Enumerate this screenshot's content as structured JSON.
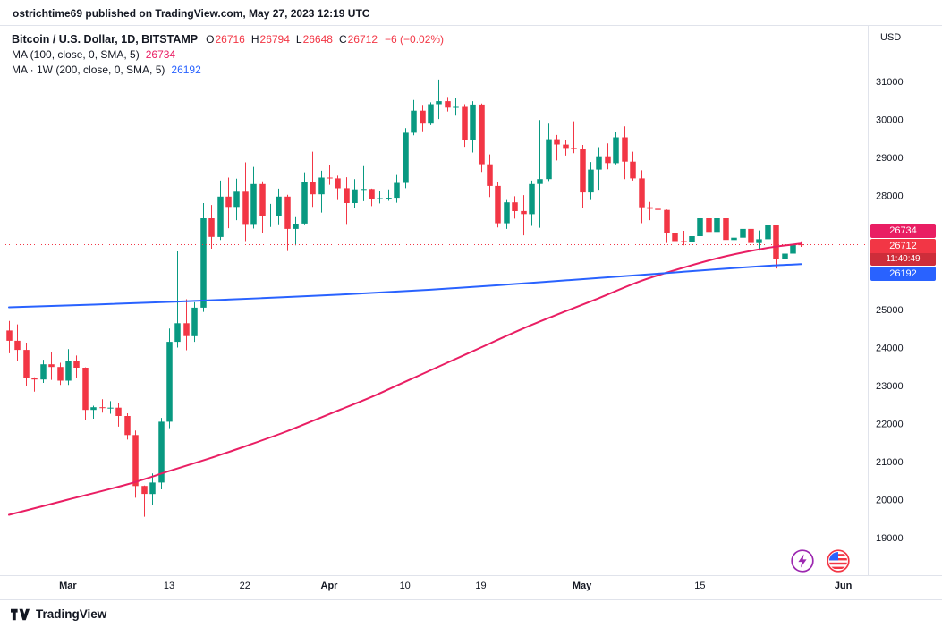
{
  "attribution": "ostrichtime69 published on TradingView.com, May 27, 2023 12:19 UTC",
  "legend": {
    "title": "Bitcoin / U.S. Dollar, 1D, BITSTAMP",
    "ohlc": [
      {
        "label": "O",
        "value": "26716"
      },
      {
        "label": "H",
        "value": "26794"
      },
      {
        "label": "L",
        "value": "26648"
      },
      {
        "label": "C",
        "value": "26712"
      }
    ],
    "change": "−6 (−0.02%)",
    "ma100_label": "MA (100, close, 0, SMA, 5)",
    "ma100_value": "26734",
    "ma200_label": "MA · 1W (200, close, 0, SMA, 5)",
    "ma200_value": "26192"
  },
  "price_axis": {
    "currency": "USD",
    "badges": {
      "ma100": {
        "value": "26734"
      },
      "last": {
        "value": "26712",
        "countdown": "11:40:49"
      },
      "ma200": {
        "value": "26192"
      }
    }
  },
  "footer": {
    "brand": "TradingView"
  },
  "icons": {
    "sticker1": "lightning-icon",
    "sticker2": "us-flag-icon",
    "logo": "tradingview-logo-icon"
  },
  "colors": {
    "up": "#089981",
    "down": "#f23645",
    "ma100": "#e91e63",
    "ma200": "#2962ff",
    "last_price_line": "#f23645",
    "text": "#131722",
    "border": "#e0e3eb",
    "background": "#ffffff"
  },
  "chart_data": {
    "type": "candlestick",
    "symbol": "Bitcoin / U.S. Dollar",
    "interval": "1D",
    "exchange": "BITSTAMP",
    "last_price": 26712,
    "change_text": "−6 (−0.02%)",
    "countdown": "11:40:49",
    "grid": "off",
    "y_axis": {
      "currency": "USD",
      "ticks": [
        31000,
        30000,
        29000,
        28000,
        25000,
        24000,
        23000,
        22000,
        21000,
        20000,
        19000
      ],
      "visible_range": [
        18700,
        31800
      ]
    },
    "x_ticks": [
      {
        "label": "Mar",
        "index": 7,
        "major": true
      },
      {
        "label": "13",
        "index": 19,
        "major": false
      },
      {
        "label": "22",
        "index": 28,
        "major": false
      },
      {
        "label": "Apr",
        "index": 38,
        "major": true
      },
      {
        "label": "10",
        "index": 47,
        "major": false
      },
      {
        "label": "19",
        "index": 56,
        "major": false
      },
      {
        "label": "May",
        "index": 68,
        "major": true
      },
      {
        "label": "15",
        "index": 82,
        "major": false
      },
      {
        "label": "Jun",
        "index": 99,
        "major": true
      }
    ],
    "candles_ohlc": [
      [
        24450,
        24700,
        23850,
        24180
      ],
      [
        24180,
        24610,
        23650,
        23940
      ],
      [
        23940,
        24130,
        22980,
        23190
      ],
      [
        23190,
        23220,
        22840,
        23160
      ],
      [
        23160,
        23680,
        23070,
        23560
      ],
      [
        23560,
        23890,
        23150,
        23490
      ],
      [
        23490,
        23600,
        23020,
        23130
      ],
      [
        23130,
        23960,
        23020,
        23640
      ],
      [
        23640,
        23790,
        23210,
        23470
      ],
      [
        23470,
        23480,
        22090,
        22360
      ],
      [
        22360,
        22470,
        22130,
        22430
      ],
      [
        22430,
        22640,
        22290,
        22410
      ],
      [
        22410,
        22590,
        22260,
        22420
      ],
      [
        22420,
        22550,
        21920,
        22200
      ],
      [
        22200,
        22270,
        21580,
        21700
      ],
      [
        21700,
        21820,
        20050,
        20360
      ],
      [
        20360,
        20370,
        19550,
        20150
      ],
      [
        20150,
        20690,
        19850,
        20450
      ],
      [
        20450,
        22150,
        20270,
        22050
      ],
      [
        22050,
        24500,
        21880,
        24150
      ],
      [
        24150,
        26530,
        24000,
        24640
      ],
      [
        24640,
        25270,
        23930,
        24300
      ],
      [
        24300,
        25190,
        24150,
        25050
      ],
      [
        25050,
        27800,
        24940,
        27400
      ],
      [
        27400,
        27750,
        26600,
        26910
      ],
      [
        26910,
        28390,
        26830,
        27970
      ],
      [
        27970,
        28470,
        27140,
        27700
      ],
      [
        27700,
        28440,
        27350,
        28100
      ],
      [
        28100,
        28870,
        26800,
        27250
      ],
      [
        27250,
        28750,
        27130,
        28300
      ],
      [
        28300,
        28370,
        27000,
        27450
      ],
      [
        27450,
        27780,
        27170,
        27470
      ],
      [
        27470,
        28180,
        27240,
        27970
      ],
      [
        27970,
        28020,
        26540,
        27120
      ],
      [
        27120,
        27430,
        26690,
        27260
      ],
      [
        27260,
        28610,
        27240,
        28350
      ],
      [
        28350,
        29150,
        27700,
        28030
      ],
      [
        28030,
        28650,
        27550,
        28470
      ],
      [
        28470,
        28810,
        28280,
        28450
      ],
      [
        28450,
        28520,
        27880,
        28190
      ],
      [
        28190,
        28480,
        27250,
        27800
      ],
      [
        27800,
        28430,
        27670,
        28160
      ],
      [
        28160,
        28770,
        27850,
        28170
      ],
      [
        28170,
        28180,
        27720,
        27910
      ],
      [
        27910,
        28110,
        27790,
        27930
      ],
      [
        27930,
        28160,
        27860,
        27940
      ],
      [
        27940,
        28540,
        27810,
        28330
      ],
      [
        28330,
        29770,
        28190,
        29650
      ],
      [
        29650,
        30510,
        29580,
        30230
      ],
      [
        30230,
        30380,
        29690,
        29890
      ],
      [
        29890,
        30450,
        29850,
        30400
      ],
      [
        30400,
        31050,
        30010,
        30480
      ],
      [
        30480,
        30590,
        30210,
        30310
      ],
      [
        30310,
        30560,
        30100,
        30330
      ],
      [
        30330,
        30400,
        29280,
        29450
      ],
      [
        29450,
        30480,
        29130,
        30390
      ],
      [
        30390,
        30420,
        28620,
        28820
      ],
      [
        28820,
        29080,
        27960,
        28250
      ],
      [
        28250,
        28350,
        27160,
        27270
      ],
      [
        27270,
        27880,
        27120,
        27820
      ],
      [
        27820,
        27980,
        27390,
        27590
      ],
      [
        27590,
        28010,
        26950,
        27510
      ],
      [
        27510,
        28390,
        27200,
        28300
      ],
      [
        28300,
        29980,
        27150,
        28430
      ],
      [
        28430,
        29890,
        28380,
        29480
      ],
      [
        29480,
        29590,
        28920,
        29340
      ],
      [
        29340,
        29450,
        29050,
        29250
      ],
      [
        29250,
        29950,
        29110,
        29230
      ],
      [
        29230,
        29330,
        27680,
        28080
      ],
      [
        28080,
        28880,
        27880,
        28680
      ],
      [
        28680,
        29270,
        28150,
        29030
      ],
      [
        29030,
        29370,
        28690,
        28850
      ],
      [
        28850,
        29670,
        28820,
        29530
      ],
      [
        29530,
        29820,
        28430,
        28890
      ],
      [
        28890,
        29150,
        28390,
        28450
      ],
      [
        28450,
        28660,
        27270,
        27690
      ],
      [
        27690,
        27830,
        27350,
        27650
      ],
      [
        27650,
        28320,
        26870,
        27620
      ],
      [
        27620,
        27630,
        26750,
        27000
      ],
      [
        27000,
        27060,
        25880,
        26800
      ],
      [
        26800,
        27070,
        26690,
        26780
      ],
      [
        26780,
        27220,
        26600,
        26930
      ],
      [
        26930,
        27660,
        26750,
        27400
      ],
      [
        27400,
        27470,
        26880,
        27040
      ],
      [
        27040,
        27470,
        26540,
        27400
      ],
      [
        27400,
        27470,
        26800,
        26830
      ],
      [
        26830,
        27170,
        26700,
        26890
      ],
      [
        26890,
        27140,
        26840,
        27120
      ],
      [
        27120,
        27270,
        26670,
        26750
      ],
      [
        26750,
        27080,
        26550,
        26850
      ],
      [
        26850,
        27430,
        26800,
        27220
      ],
      [
        27220,
        27230,
        26080,
        26330
      ],
      [
        26330,
        26620,
        25870,
        26470
      ],
      [
        26470,
        26930,
        26330,
        26720
      ],
      [
        26716,
        26794,
        26648,
        26712
      ]
    ],
    "overlays": [
      {
        "name": "MA (100, close, 0, SMA, 5)",
        "current_value": 26734,
        "color": "#e91e63",
        "points_by_index": [
          [
            0,
            19600
          ],
          [
            7,
            20000
          ],
          [
            14,
            20400
          ],
          [
            19,
            20750
          ],
          [
            24,
            21100
          ],
          [
            28,
            21400
          ],
          [
            33,
            21800
          ],
          [
            38,
            22250
          ],
          [
            43,
            22700
          ],
          [
            47,
            23100
          ],
          [
            52,
            23600
          ],
          [
            56,
            24000
          ],
          [
            61,
            24500
          ],
          [
            66,
            24950
          ],
          [
            70,
            25300
          ],
          [
            75,
            25750
          ],
          [
            80,
            26100
          ],
          [
            85,
            26400
          ],
          [
            90,
            26620
          ],
          [
            94,
            26734
          ]
        ]
      },
      {
        "name": "MA · 1W (200, close, 0, SMA, 5)",
        "current_value": 26192,
        "color": "#2962ff",
        "points_by_index": [
          [
            0,
            25060
          ],
          [
            10,
            25130
          ],
          [
            20,
            25210
          ],
          [
            30,
            25300
          ],
          [
            40,
            25400
          ],
          [
            50,
            25520
          ],
          [
            60,
            25670
          ],
          [
            70,
            25830
          ],
          [
            78,
            25960
          ],
          [
            84,
            26060
          ],
          [
            90,
            26150
          ],
          [
            94,
            26192
          ]
        ]
      }
    ]
  }
}
